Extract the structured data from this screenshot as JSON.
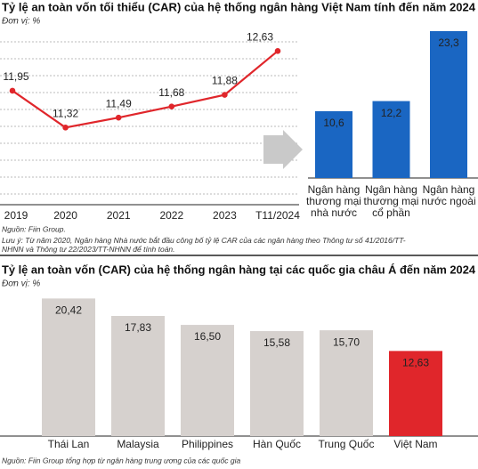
{
  "chart_data": [
    {
      "type": "line",
      "title": "Tỷ lệ an toàn vốn tối thiểu (CAR) của hệ thống ngân hàng Việt Nam tính đến năm 2024",
      "unit": "Đơn vị: %",
      "categories": [
        "2019",
        "2020",
        "2021",
        "2022",
        "2023",
        "T11/2024"
      ],
      "values": [
        11.95,
        11.32,
        11.49,
        11.68,
        11.88,
        12.63
      ],
      "value_labels": [
        "11,95",
        "11,32",
        "11,49",
        "11,68",
        "11,88",
        "12,63"
      ],
      "color": "#e0262b",
      "ylim": [
        10,
        13
      ],
      "source": "Nguồn: Fiin Group.",
      "note": "Lưu ý: Từ năm 2020, Ngân hàng Nhà nước bắt đầu công bố tỷ lệ CAR của các ngân hàng theo Thông tư số 41/2016/TT-NHNN và Thông tư 22/2023/TT-NHNN để tính toán."
    },
    {
      "type": "bar",
      "categories": [
        "Ngân hàng thương mại nhà nước",
        "Ngân hàng thương mại cổ phần",
        "Ngân hàng nước ngoài"
      ],
      "values": [
        10.6,
        12.2,
        23.3
      ],
      "value_labels": [
        "10,6",
        "12,2",
        "23,3"
      ],
      "color": "#1a66c2",
      "ylim": [
        0,
        24
      ]
    },
    {
      "type": "bar",
      "title": "Tỷ lệ an toàn vốn (CAR) của hệ thống ngân hàng tại các quốc gia châu Á đến năm 2024",
      "unit": "Đơn vị: %",
      "categories": [
        "Thái Lan",
        "Malaysia",
        "Philippines",
        "Hàn Quốc",
        "Trung Quốc",
        "Việt Nam"
      ],
      "values": [
        20.42,
        17.83,
        16.5,
        15.58,
        15.7,
        12.63
      ],
      "value_labels": [
        "20,42",
        "17,83",
        "16,50",
        "15,58",
        "15,70",
        "12,63"
      ],
      "colors": [
        "#d6d1ce",
        "#d6d1ce",
        "#d6d1ce",
        "#d6d1ce",
        "#d6d1ce",
        "#e0262b"
      ],
      "ylim": [
        0,
        21
      ],
      "source": "Nguồn: Fiin Group tổng hợp từ ngân hàng trung ương của các quốc gia"
    }
  ]
}
